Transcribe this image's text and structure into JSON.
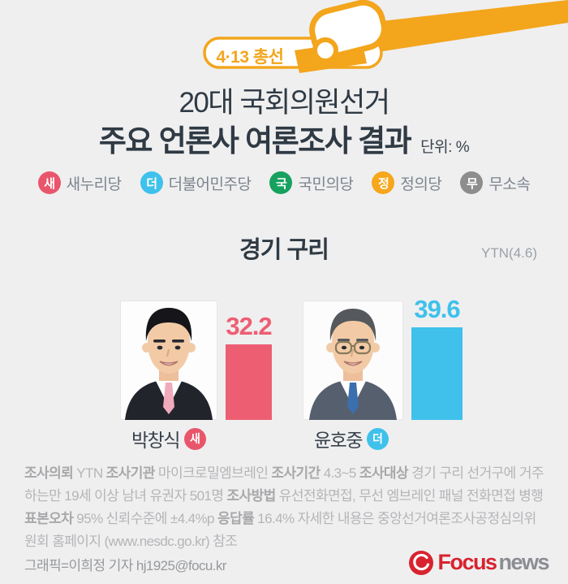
{
  "header": {
    "badge_label": "4·13 총선",
    "title_line1": "20대 국회의원선거",
    "title_line2": "주요 언론사 여론조사 결과",
    "unit_label": "단위: %"
  },
  "legend": {
    "items": [
      {
        "initial": "새",
        "label": "새누리당",
        "color": "#e9566b"
      },
      {
        "initial": "더",
        "label": "더불어민주당",
        "color": "#3fc1ec"
      },
      {
        "initial": "국",
        "label": "국민의당",
        "color": "#17a15f"
      },
      {
        "initial": "정",
        "label": "정의당",
        "color": "#f6a71b"
      },
      {
        "initial": "무",
        "label": "무소속",
        "color": "#8d8d8d"
      }
    ]
  },
  "section": {
    "region": "경기 구리",
    "source": "YTN(4.6)"
  },
  "chart_data": {
    "type": "bar",
    "title": "경기 구리",
    "source": "YTN(4.6)",
    "unit": "%",
    "categories": [
      "박창식",
      "윤호중"
    ],
    "values": [
      32.2,
      39.6
    ],
    "bar_colors": [
      "#ee5e72",
      "#3fc1ec"
    ],
    "parties": [
      "새",
      "더"
    ],
    "party_colors": [
      "#e9566b",
      "#3fc1ec"
    ],
    "ylim": [
      0,
      45
    ],
    "grid": false,
    "legend_position": "top"
  },
  "candidates": [
    {
      "name": "박창식",
      "party_initial": "새",
      "party_color": "#e9566b",
      "value_color": "#ee5e72"
    },
    {
      "name": "윤호중",
      "party_initial": "더",
      "party_color": "#3fc1ec",
      "value_color": "#3fc1ec"
    }
  ],
  "footnote": {
    "segments": [
      {
        "t": "조사의뢰",
        "b": true
      },
      {
        "t": " YTN "
      },
      {
        "t": "조사기관",
        "b": true
      },
      {
        "t": " 마이크로밀엠브레인 "
      },
      {
        "t": "조사기간",
        "b": true
      },
      {
        "t": " 4.3~5  "
      },
      {
        "t": "조사대상",
        "b": true
      },
      {
        "t": " 경기 구리 선거구에 거주하는만 19세 이상 남녀 유권자 501명 "
      },
      {
        "t": "조사방법",
        "b": true
      },
      {
        "t": " 유선전화면접, 무선 엠브레인 패널 전화면접 병행  "
      },
      {
        "t": "표본오차",
        "b": true
      },
      {
        "t": " 95% 신뢰수준에 ±4.4%p  "
      },
      {
        "t": "응답률",
        "b": true
      },
      {
        "t": " 16.4% 자세한 내용은 중앙선거여론조사공정심의위원회 홈페이지 (www.nesdc.go.kr) 참조"
      }
    ]
  },
  "credit": "그래픽=이희정 기자 hj1925@focu.kr",
  "logo": {
    "focus": "Focus",
    "news": "news"
  },
  "colors": {
    "accent_orange": "#f3a51c",
    "title_dark": "#2f3a44",
    "background": "#efeff0"
  }
}
